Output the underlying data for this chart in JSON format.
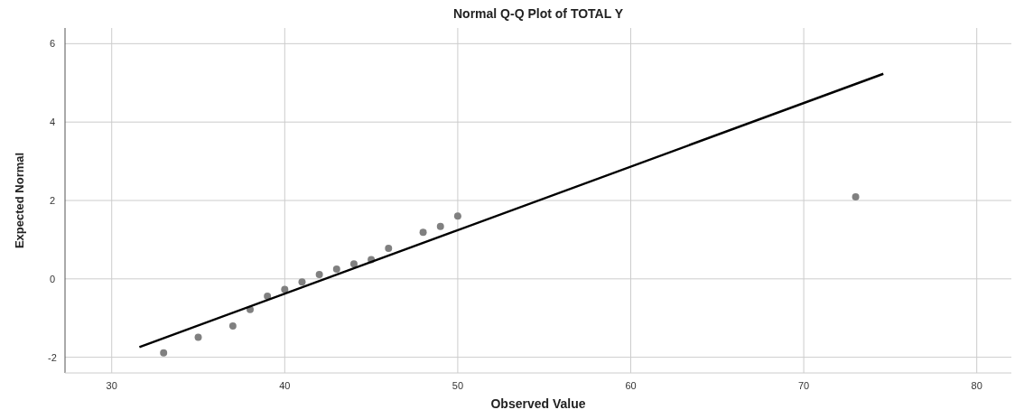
{
  "chart_data": {
    "type": "scatter",
    "title": "Normal Q-Q Plot of TOTAL Y",
    "xlabel": "Observed Value",
    "ylabel": "Expected Normal",
    "xlim": [
      27.3,
      82
    ],
    "ylim": [
      -2.4,
      6.4
    ],
    "xticks": [
      30,
      40,
      50,
      60,
      70,
      80
    ],
    "yticks": [
      -2,
      0,
      2,
      4,
      6
    ],
    "grid": true,
    "marker": "circle",
    "series": [
      {
        "color": "#808080",
        "x": [
          33,
          35,
          37,
          38,
          39,
          40,
          41,
          42,
          43,
          44,
          45,
          46,
          48,
          49,
          50,
          73
        ],
        "values": [
          -1.89,
          -1.49,
          -1.2,
          -0.78,
          -0.44,
          -0.27,
          -0.08,
          0.11,
          0.25,
          0.38,
          0.49,
          0.78,
          1.19,
          1.34,
          1.6,
          2.09
        ]
      },
      {
        "type": "line",
        "marker": "none",
        "color": "#000000",
        "x": [
          31.6,
          74.6
        ],
        "values": [
          -1.74,
          5.23
        ]
      }
    ]
  }
}
